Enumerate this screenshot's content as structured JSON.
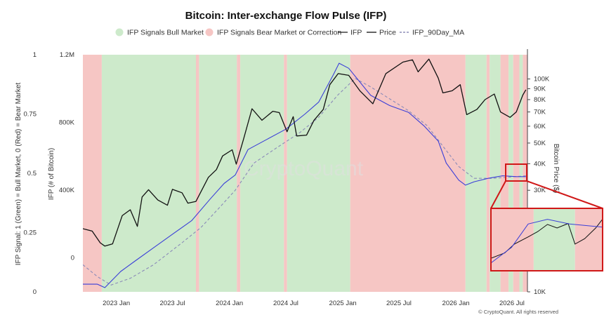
{
  "chart_data": {
    "type": "line",
    "title": "Bitcoin: Inter-exchange Flow Pulse (IFP)",
    "watermark": "CryptoQuant",
    "copyright": "© CryptoQuant. All rights reserved",
    "legend": [
      {
        "label": "IFP Signals Bull Market",
        "kind": "dot",
        "color": "#cdeacb"
      },
      {
        "label": "IFP Signals Bear Market or Correction",
        "kind": "dot",
        "color": "#f6c6c4"
      },
      {
        "label": "IFP",
        "kind": "line",
        "color": "#222222"
      },
      {
        "label": "Price",
        "kind": "line",
        "color": "#111111"
      },
      {
        "label": "IFP_90Day_MA",
        "kind": "dash",
        "color": "#7777aa"
      }
    ],
    "x_range": [
      "2022-09-15",
      "2026-08-20"
    ],
    "x_ticks": [
      {
        "label": "2023 Jan",
        "date": "2023-01-01"
      },
      {
        "label": "2023 Jul",
        "date": "2023-07-01"
      },
      {
        "label": "2024 Jan",
        "date": "2024-01-01"
      },
      {
        "label": "2024 Jul",
        "date": "2024-07-01"
      },
      {
        "label": "2025 Jan",
        "date": "2025-01-01"
      },
      {
        "label": "2025 Jul",
        "date": "2025-07-01"
      },
      {
        "label": "2026 Jan",
        "date": "2026-01-01"
      },
      {
        "label": "2026 Jul",
        "date": "2026-07-01"
      }
    ],
    "signal_axis": {
      "label": "IFP Signal: 1 (Green) = Bull Market, 0 (Red) = Bear Market",
      "range": [
        0,
        1
      ],
      "ticks": [
        "0",
        "0.25",
        "0.5",
        "0.75",
        "1"
      ]
    },
    "ifp_axis": {
      "label": "IFP (# of Bitcoin)",
      "range": [
        -200000,
        1200000
      ],
      "ticks": [
        {
          "label": "0",
          "value": 0
        },
        {
          "label": "400K",
          "value": 400000
        },
        {
          "label": "800K",
          "value": 800000
        },
        {
          "label": "1.2M",
          "value": 1200000
        }
      ]
    },
    "price_axis": {
      "label": "Bitcoin Price ($)",
      "scale": "log",
      "range": [
        10000,
        130000
      ],
      "ticks": [
        {
          "label": "10K",
          "value": 10000
        },
        {
          "label": "30K",
          "value": 30000
        },
        {
          "label": "40K",
          "value": 40000
        },
        {
          "label": "50K",
          "value": 50000
        },
        {
          "label": "60K",
          "value": 60000
        },
        {
          "label": "70K",
          "value": 70000
        },
        {
          "label": "80K",
          "value": 80000
        },
        {
          "label": "90K",
          "value": 90000
        },
        {
          "label": "100K",
          "value": 100000
        }
      ]
    },
    "signal_periods": [
      {
        "start": "2022-09-15",
        "end": "2022-11-15",
        "signal": 0
      },
      {
        "start": "2022-11-15",
        "end": "2023-09-15",
        "signal": 1
      },
      {
        "start": "2023-09-15",
        "end": "2023-09-25",
        "signal": 0
      },
      {
        "start": "2023-09-25",
        "end": "2024-01-25",
        "signal": 1
      },
      {
        "start": "2024-01-25",
        "end": "2024-02-05",
        "signal": 0
      },
      {
        "start": "2024-02-05",
        "end": "2024-06-25",
        "signal": 1
      },
      {
        "start": "2024-06-25",
        "end": "2024-07-05",
        "signal": 0
      },
      {
        "start": "2024-07-05",
        "end": "2025-01-25",
        "signal": 1
      },
      {
        "start": "2025-01-25",
        "end": "2026-02-01",
        "signal": 0
      },
      {
        "start": "2026-02-01",
        "end": "2026-04-10",
        "signal": 1
      },
      {
        "start": "2026-04-10",
        "end": "2026-04-20",
        "signal": 0
      },
      {
        "start": "2026-04-20",
        "end": "2026-05-25",
        "signal": 1
      },
      {
        "start": "2026-05-25",
        "end": "2026-06-20",
        "signal": 0
      },
      {
        "start": "2026-06-20",
        "end": "2026-07-05",
        "signal": 1
      },
      {
        "start": "2026-07-05",
        "end": "2026-07-25",
        "signal": 0
      },
      {
        "start": "2026-07-25",
        "end": "2026-08-05",
        "signal": 1
      },
      {
        "start": "2026-08-05",
        "end": "2026-08-20",
        "signal": 0
      }
    ],
    "series": [
      {
        "name": "Price",
        "color": "#111111",
        "points": [
          [
            "2022-09-15",
            19800
          ],
          [
            "2022-10-15",
            19300
          ],
          [
            "2022-11-10",
            17000
          ],
          [
            "2022-11-25",
            16400
          ],
          [
            "2022-12-20",
            16800
          ],
          [
            "2023-01-20",
            22800
          ],
          [
            "2023-02-15",
            24300
          ],
          [
            "2023-03-10",
            20300
          ],
          [
            "2023-03-25",
            27900
          ],
          [
            "2023-04-15",
            30200
          ],
          [
            "2023-05-15",
            27000
          ],
          [
            "2023-06-15",
            25500
          ],
          [
            "2023-07-01",
            30300
          ],
          [
            "2023-08-01",
            29200
          ],
          [
            "2023-08-20",
            26100
          ],
          [
            "2023-09-15",
            26600
          ],
          [
            "2023-10-25",
            34500
          ],
          [
            "2023-11-20",
            37500
          ],
          [
            "2023-12-10",
            43500
          ],
          [
            "2024-01-10",
            46500
          ],
          [
            "2024-01-23",
            39800
          ],
          [
            "2024-02-15",
            51800
          ],
          [
            "2024-03-14",
            72500
          ],
          [
            "2024-04-15",
            64000
          ],
          [
            "2024-05-20",
            70500
          ],
          [
            "2024-06-10",
            69500
          ],
          [
            "2024-07-05",
            56500
          ],
          [
            "2024-07-25",
            66500
          ],
          [
            "2024-08-05",
            54000
          ],
          [
            "2024-09-06",
            54500
          ],
          [
            "2024-09-30",
            64000
          ],
          [
            "2024-10-30",
            72000
          ],
          [
            "2024-11-20",
            94000
          ],
          [
            "2024-12-17",
            106000
          ],
          [
            "2025-01-20",
            104000
          ],
          [
            "2025-02-25",
            88000
          ],
          [
            "2025-04-08",
            76500
          ],
          [
            "2025-05-20",
            106000
          ],
          [
            "2025-07-14",
            120000
          ],
          [
            "2025-08-14",
            123000
          ],
          [
            "2025-09-01",
            108000
          ],
          [
            "2025-10-06",
            124000
          ],
          [
            "2025-11-05",
            101000
          ],
          [
            "2025-11-20",
            86000
          ],
          [
            "2025-12-20",
            88000
          ],
          [
            "2026-01-15",
            94000
          ],
          [
            "2026-02-05",
            68000
          ],
          [
            "2026-03-10",
            72000
          ],
          [
            "2026-04-05",
            80000
          ],
          [
            "2026-05-05",
            85000
          ],
          [
            "2026-05-25",
            70000
          ],
          [
            "2026-06-25",
            66000
          ],
          [
            "2026-07-15",
            70000
          ],
          [
            "2026-08-05",
            84000
          ],
          [
            "2026-08-15",
            89000
          ]
        ]
      },
      {
        "name": "IFP",
        "color": "#3b3fd8",
        "points": [
          [
            "2022-09-15",
            -155000
          ],
          [
            "2022-11-01",
            -155000
          ],
          [
            "2022-11-25",
            -175000
          ],
          [
            "2023-01-15",
            -80000
          ],
          [
            "2023-03-01",
            -20000
          ],
          [
            "2023-05-01",
            60000
          ],
          [
            "2023-07-01",
            140000
          ],
          [
            "2023-09-01",
            220000
          ],
          [
            "2023-11-01",
            350000
          ],
          [
            "2023-12-15",
            440000
          ],
          [
            "2024-01-20",
            490000
          ],
          [
            "2024-03-01",
            640000
          ],
          [
            "2024-05-01",
            700000
          ],
          [
            "2024-07-01",
            760000
          ],
          [
            "2024-09-01",
            850000
          ],
          [
            "2024-10-15",
            920000
          ],
          [
            "2024-12-01",
            1080000
          ],
          [
            "2024-12-20",
            1150000
          ],
          [
            "2025-01-20",
            1120000
          ],
          [
            "2025-02-20",
            1050000
          ],
          [
            "2025-04-01",
            960000
          ],
          [
            "2025-06-01",
            900000
          ],
          [
            "2025-08-01",
            860000
          ],
          [
            "2025-09-20",
            780000
          ],
          [
            "2025-11-05",
            690000
          ],
          [
            "2025-12-01",
            560000
          ],
          [
            "2026-01-10",
            460000
          ],
          [
            "2026-02-01",
            430000
          ],
          [
            "2026-03-01",
            450000
          ],
          [
            "2026-04-15",
            470000
          ],
          [
            "2026-06-01",
            485000
          ],
          [
            "2026-07-15",
            480000
          ],
          [
            "2026-08-15",
            480000
          ]
        ]
      },
      {
        "name": "IFP_90Day_MA",
        "color": "#8a8ab8",
        "dashed": true,
        "points": [
          [
            "2022-09-15",
            -40000
          ],
          [
            "2022-11-01",
            -110000
          ],
          [
            "2022-12-15",
            -160000
          ],
          [
            "2023-02-15",
            -120000
          ],
          [
            "2023-05-01",
            -40000
          ],
          [
            "2023-08-01",
            90000
          ],
          [
            "2023-10-01",
            180000
          ],
          [
            "2023-12-01",
            300000
          ],
          [
            "2024-01-20",
            400000
          ],
          [
            "2024-03-20",
            560000
          ],
          [
            "2024-06-01",
            650000
          ],
          [
            "2024-08-15",
            740000
          ],
          [
            "2024-10-15",
            830000
          ],
          [
            "2024-12-15",
            960000
          ],
          [
            "2025-02-10",
            1060000
          ],
          [
            "2025-04-01",
            1010000
          ],
          [
            "2025-06-01",
            940000
          ],
          [
            "2025-08-01",
            870000
          ],
          [
            "2025-10-01",
            780000
          ],
          [
            "2025-11-20",
            660000
          ],
          [
            "2026-01-10",
            540000
          ],
          [
            "2026-03-01",
            470000
          ],
          [
            "2026-05-01",
            470000
          ],
          [
            "2026-08-15",
            485000
          ]
        ]
      }
    ],
    "zoom_inset": {
      "source_range": [
        "2026-05-05",
        "2026-07-25"
      ],
      "price_points": [
        [
          "2026-05-05",
          67000
        ],
        [
          "2026-05-15",
          70000
        ],
        [
          "2026-05-22",
          75000
        ],
        [
          "2026-06-01",
          79000
        ],
        [
          "2026-06-08",
          82000
        ],
        [
          "2026-06-15",
          86000
        ],
        [
          "2026-06-22",
          84000
        ],
        [
          "2026-06-30",
          86500
        ],
        [
          "2026-07-05",
          75000
        ],
        [
          "2026-07-12",
          78000
        ],
        [
          "2026-07-20",
          84000
        ],
        [
          "2026-07-25",
          89000
        ]
      ],
      "ifp_points": [
        [
          "2026-05-05",
          430000
        ],
        [
          "2026-05-20",
          450000
        ],
        [
          "2026-06-01",
          480000
        ],
        [
          "2026-06-15",
          486000
        ],
        [
          "2026-07-01",
          480000
        ],
        [
          "2026-07-25",
          476000
        ]
      ],
      "signal_periods": [
        {
          "start": "2026-05-05",
          "end": "2026-06-05",
          "signal": 0
        },
        {
          "start": "2026-06-05",
          "end": "2026-07-05",
          "signal": 1
        },
        {
          "start": "2026-07-05",
          "end": "2026-07-25",
          "signal": 0
        }
      ]
    }
  }
}
